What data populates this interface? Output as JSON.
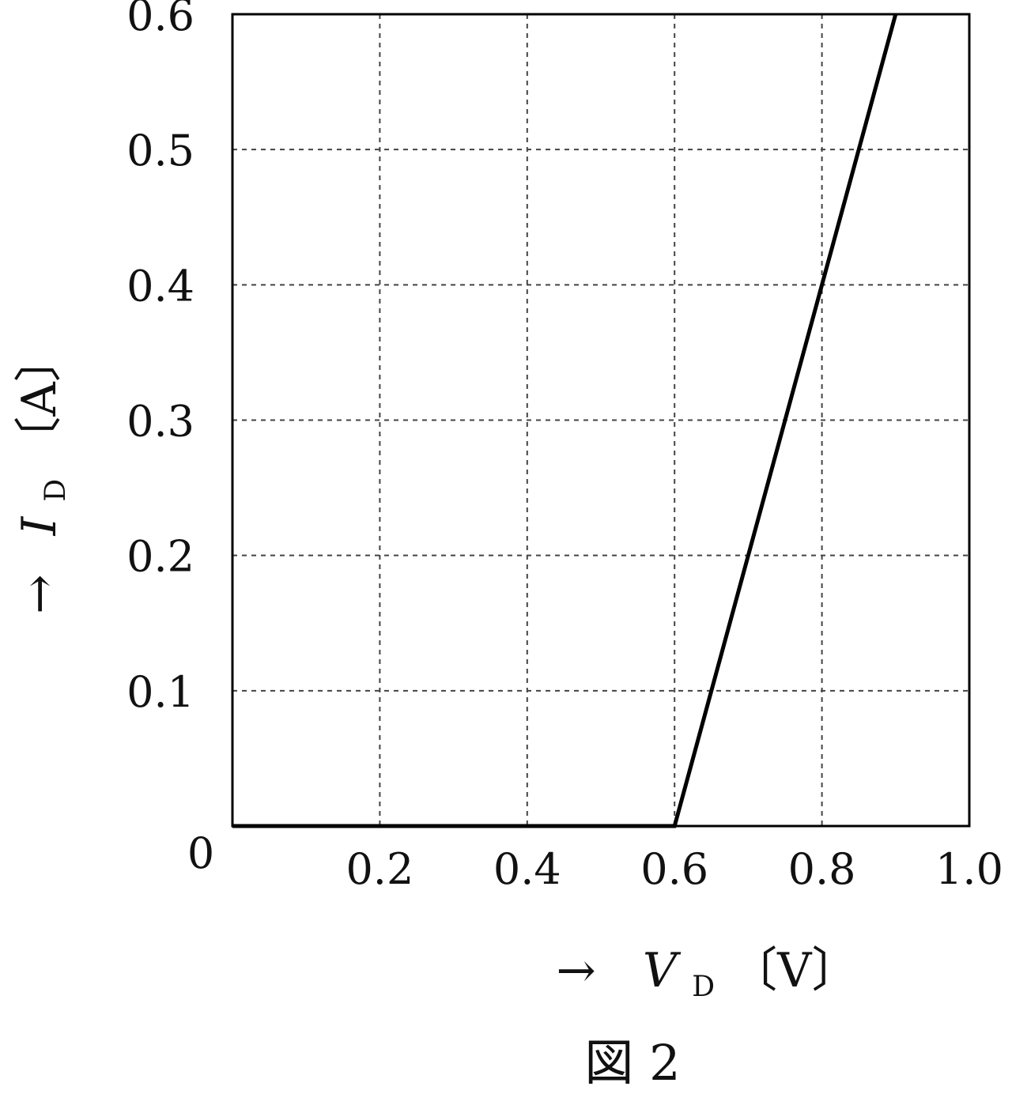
{
  "chart_data": {
    "type": "line",
    "caption": "図 2",
    "xlabel": {
      "arrow": "→",
      "var": "V",
      "sub": "D",
      "unit": "〔V〕"
    },
    "ylabel": {
      "arrow": "→",
      "var": "I",
      "sub": "D",
      "unit": "〔A〕"
    },
    "xlim": [
      0,
      1.0
    ],
    "ylim": [
      0,
      0.6
    ],
    "xticks": [
      0.2,
      0.4,
      0.6,
      0.8,
      1.0
    ],
    "xtick_labels": [
      "0.2",
      "0.4",
      "0.6",
      "0.8",
      "1.0"
    ],
    "yticks": [
      0.1,
      0.2,
      0.3,
      0.4,
      0.5,
      0.6
    ],
    "ytick_labels": [
      "0.1",
      "0.2",
      "0.3",
      "0.4",
      "0.5",
      "0.6"
    ],
    "origin_label": "0",
    "grid": true,
    "series": [
      {
        "x": [
          0,
          0.6,
          0.9
        ],
        "y": [
          0,
          0,
          0.6
        ]
      }
    ],
    "colors": {
      "line": "#000000",
      "grid": "#444444",
      "frame": "#000000"
    }
  }
}
